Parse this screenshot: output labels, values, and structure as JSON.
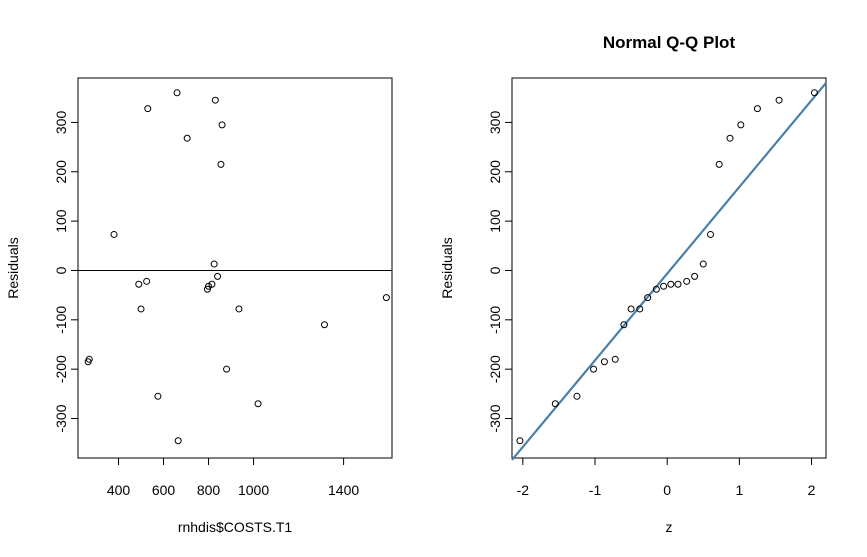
{
  "chart_data": [
    {
      "type": "scatter",
      "title": "",
      "xlabel": "rnhdis$COSTS.T1",
      "ylabel": "Residuals",
      "xlim": [
        220,
        1615
      ],
      "ylim": [
        -380,
        390
      ],
      "xticks": [
        "400",
        "600",
        "800",
        "1000",
        "1400"
      ],
      "xtick_values": [
        400,
        600,
        800,
        1000,
        1400
      ],
      "yticks": [
        "-300",
        "-200",
        "-100",
        "0",
        "100",
        "200",
        "300"
      ],
      "ytick_values": [
        -300,
        -200,
        -100,
        0,
        100,
        200,
        300
      ],
      "hline": 0,
      "points": [
        {
          "x": 265,
          "y": -185
        },
        {
          "x": 270,
          "y": -180
        },
        {
          "x": 380,
          "y": 73
        },
        {
          "x": 490,
          "y": -28
        },
        {
          "x": 500,
          "y": -78
        },
        {
          "x": 525,
          "y": -22
        },
        {
          "x": 530,
          "y": 328
        },
        {
          "x": 575,
          "y": -255
        },
        {
          "x": 660,
          "y": 360
        },
        {
          "x": 665,
          "y": -345
        },
        {
          "x": 705,
          "y": 268
        },
        {
          "x": 795,
          "y": -38
        },
        {
          "x": 800,
          "y": -32
        },
        {
          "x": 815,
          "y": -28
        },
        {
          "x": 825,
          "y": 13
        },
        {
          "x": 830,
          "y": 345
        },
        {
          "x": 840,
          "y": -12
        },
        {
          "x": 855,
          "y": 215
        },
        {
          "x": 860,
          "y": 295
        },
        {
          "x": 880,
          "y": -200
        },
        {
          "x": 935,
          "y": -78
        },
        {
          "x": 1020,
          "y": -270
        },
        {
          "x": 1315,
          "y": -110
        },
        {
          "x": 1590,
          "y": -55
        }
      ]
    },
    {
      "type": "scatter",
      "title": "Normal Q-Q Plot",
      "xlabel": "z",
      "ylabel": "Residuals",
      "xlim": [
        -2.15,
        2.2
      ],
      "ylim": [
        -380,
        390
      ],
      "xticks": [
        "-2",
        "-1",
        "0",
        "1",
        "2"
      ],
      "xtick_values": [
        -2,
        -1,
        0,
        1,
        2
      ],
      "yticks": [
        "-300",
        "-200",
        "-100",
        "0",
        "100",
        "200",
        "300"
      ],
      "ytick_values": [
        -300,
        -200,
        -100,
        0,
        100,
        200,
        300
      ],
      "reference_line": {
        "x": [
          -2.15,
          2.2
        ],
        "y": [
          -384,
          380
        ],
        "color": "#4a7fa8"
      },
      "points": [
        {
          "x": -2.04,
          "y": -345
        },
        {
          "x": -1.55,
          "y": -270
        },
        {
          "x": -1.25,
          "y": -255
        },
        {
          "x": -1.02,
          "y": -200
        },
        {
          "x": -0.87,
          "y": -185
        },
        {
          "x": -0.72,
          "y": -180
        },
        {
          "x": -0.6,
          "y": -110
        },
        {
          "x": -0.5,
          "y": -78
        },
        {
          "x": -0.38,
          "y": -78
        },
        {
          "x": -0.27,
          "y": -55
        },
        {
          "x": -0.15,
          "y": -38
        },
        {
          "x": -0.05,
          "y": -32
        },
        {
          "x": 0.05,
          "y": -28
        },
        {
          "x": 0.15,
          "y": -28
        },
        {
          "x": 0.27,
          "y": -22
        },
        {
          "x": 0.38,
          "y": -12
        },
        {
          "x": 0.5,
          "y": 13
        },
        {
          "x": 0.6,
          "y": 73
        },
        {
          "x": 0.72,
          "y": 215
        },
        {
          "x": 0.87,
          "y": 268
        },
        {
          "x": 1.02,
          "y": 295
        },
        {
          "x": 1.25,
          "y": 328
        },
        {
          "x": 1.55,
          "y": 345
        },
        {
          "x": 2.04,
          "y": 360
        }
      ]
    }
  ]
}
